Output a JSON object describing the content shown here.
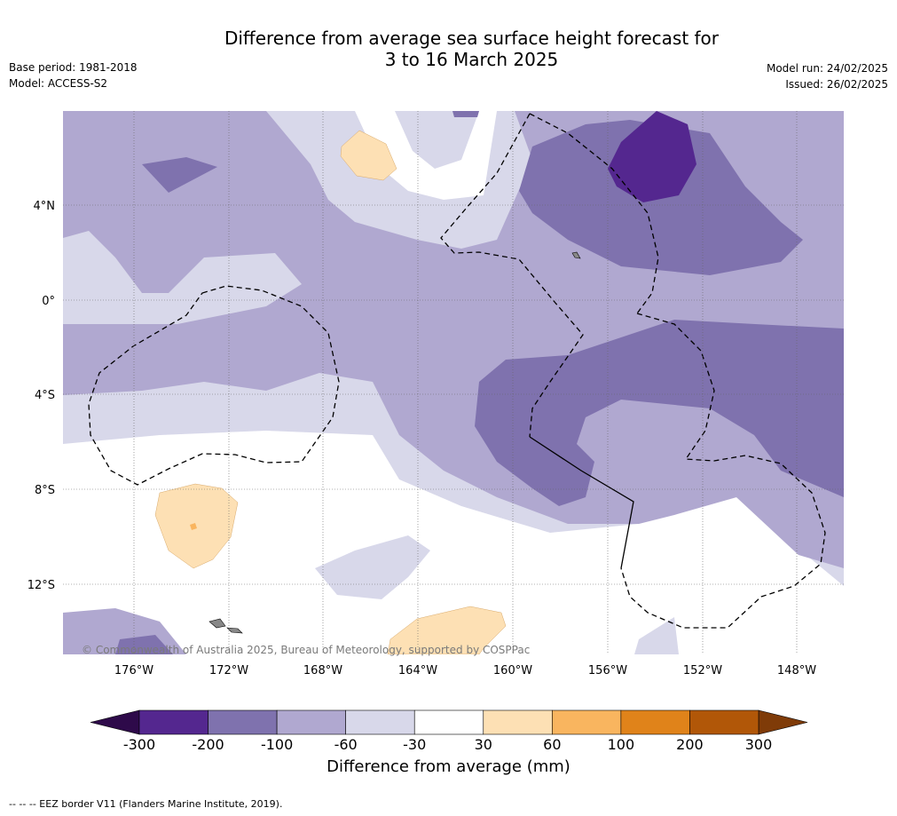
{
  "title_line1": "Difference from average sea surface height forecast for",
  "title_line2": "3 to 16 March 2025",
  "base_period": "Base period: 1981-2018",
  "model": "Model: ACCESS-S2",
  "model_run": "Model run: 24/02/2025",
  "issued": "Issued: 26/02/2025",
  "copyright": "© Commonwealth of Australia 2025, Bureau of Meteorology, supported by COSPPac",
  "footer": "--  --  -- EEZ border V11 (Flanders Marine Institute, 2019).",
  "lat_labels": [
    "4°N",
    "0°",
    "4°S",
    "8°S",
    "12°S"
  ],
  "lon_labels": [
    "176°W",
    "172°W",
    "168°W",
    "164°W",
    "160°W",
    "156°W",
    "152°W",
    "148°W"
  ],
  "colorbar": {
    "title": "Difference from average (mm)",
    "ticks": [
      "-300",
      "-200",
      "-100",
      "-60",
      "-30",
      "30",
      "60",
      "100",
      "200",
      "300"
    ],
    "colors": [
      "#2e0a4a",
      "#54278f",
      "#7f72ae",
      "#b0a8d0",
      "#d8d8ea",
      "#ffffff",
      "#fde0b4",
      "#f9b55f",
      "#e0831a",
      "#b15708",
      "#7f3b08"
    ]
  }
}
